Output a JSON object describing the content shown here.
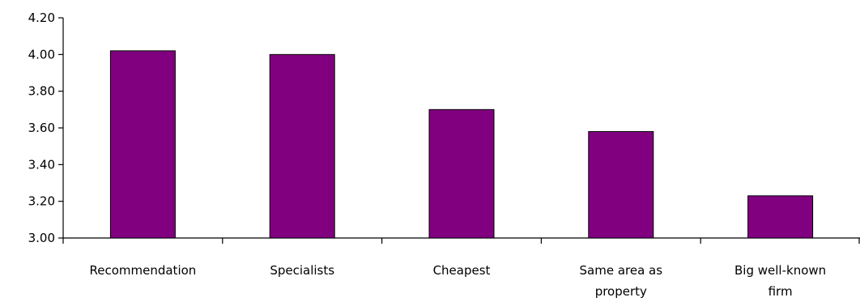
{
  "chart_data": {
    "type": "bar",
    "title": "",
    "xlabel": "",
    "ylabel": "",
    "ylim": [
      3.0,
      4.2
    ],
    "yticks": [
      "3.00",
      "3.20",
      "3.40",
      "3.60",
      "3.80",
      "4.00",
      "4.20"
    ],
    "categories": [
      [
        "Recommendation"
      ],
      [
        "Specialists"
      ],
      [
        "Cheapest"
      ],
      [
        "Same area as",
        "property"
      ],
      [
        "Big well-known",
        "firm"
      ]
    ],
    "values": [
      4.02,
      4.0,
      3.7,
      3.58,
      3.23
    ],
    "grid": false,
    "legend": "none",
    "bar_color": "#800080"
  }
}
